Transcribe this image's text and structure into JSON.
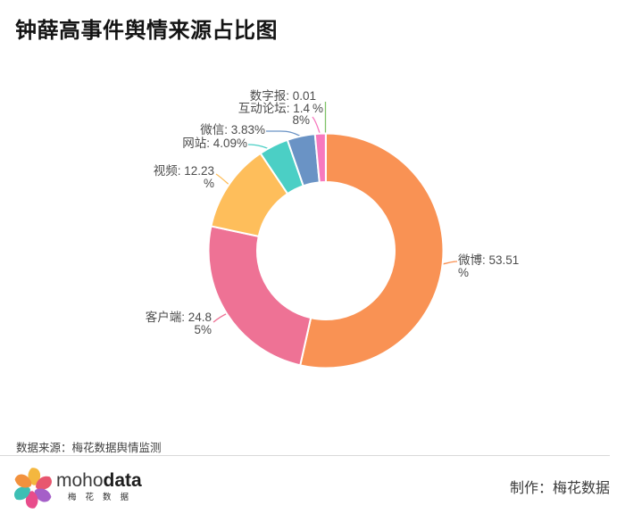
{
  "title": "钟薛高事件舆情来源占比图",
  "source_note": "数据来源：梅花数据舆情监测",
  "chart_data": {
    "type": "pie",
    "title": "钟薛高事件舆情来源占比图",
    "donut": true,
    "start_angle_deg": 90,
    "clockwise": true,
    "unit": "%",
    "label_format": "{name}: {value}%",
    "series": [
      {
        "name": "微博",
        "key": "weibo",
        "value": 53.51,
        "color": "#F99254"
      },
      {
        "name": "客户端",
        "key": "client",
        "value": 24.85,
        "color": "#EE7295"
      },
      {
        "name": "视频",
        "key": "video",
        "value": 12.23,
        "color": "#FEBE5B"
      },
      {
        "name": "网站",
        "key": "website",
        "value": 4.09,
        "color": "#4BCFC5"
      },
      {
        "name": "微信",
        "key": "wechat",
        "value": 3.83,
        "color": "#6A93C5"
      },
      {
        "name": "互动论坛",
        "key": "forum",
        "value": 1.48,
        "color": "#F779BE"
      },
      {
        "name": "数字报",
        "key": "digital-paper",
        "value": 0.01,
        "color": "#7FC269"
      }
    ]
  },
  "labels": {
    "shuzibao": {
      "line1": "数字报: 0.01",
      "line2": "%"
    },
    "hudong": {
      "line1": "互动论坛: 1.4",
      "line2": "8%"
    },
    "weixin": {
      "line1": "微信: 3.83%"
    },
    "wangzhan": {
      "line1": "网站: 4.09%"
    },
    "shipin": {
      "line1": "视频: 12.23",
      "line2": "%"
    },
    "kehuduan": {
      "line1": "客户端: 24.8",
      "line2": "5%"
    },
    "weibo": {
      "line1": "微博: 53.51",
      "line2": "%"
    }
  },
  "footer": {
    "brand_moho": "moho",
    "brand_data": "data",
    "brand_cn": "梅花数据",
    "credit": "制作：梅花数据",
    "logo_colors": [
      "#F4B73F",
      "#E8566F",
      "#A55FC8",
      "#E84C8B",
      "#3DBFB4",
      "#F2913D"
    ]
  }
}
